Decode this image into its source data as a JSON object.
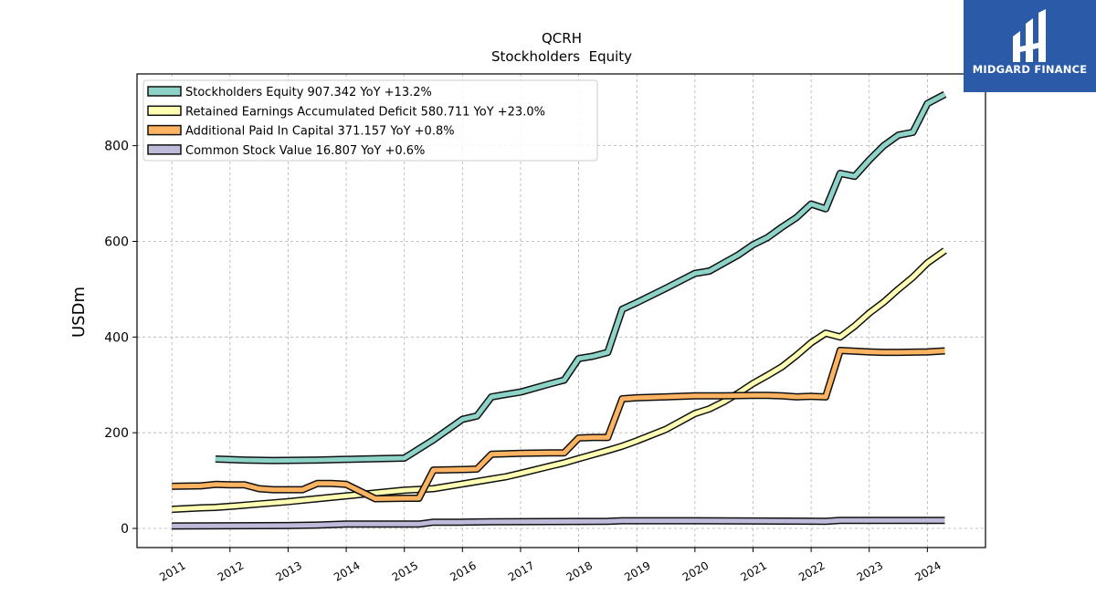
{
  "logo": {
    "text": "MIDGARD FINANCE",
    "background": "#2a5aa8"
  },
  "chart_data": {
    "type": "line",
    "title": "QCRH",
    "subtitle": "Stockholders  Equity",
    "ylabel": "USDm",
    "xlabel": "",
    "xlim": [
      2010.4,
      2025.0
    ],
    "ylim": [
      -40,
      950
    ],
    "yticks": [
      0,
      200,
      400,
      600,
      800
    ],
    "xticks": [
      2011,
      2012,
      2013,
      2014,
      2015,
      2016,
      2017,
      2018,
      2019,
      2020,
      2021,
      2022,
      2023,
      2024
    ],
    "grid": true,
    "legend_position": "top-left",
    "series": [
      {
        "name": "Stockholders Equity",
        "legend_label": "Stockholders Equity  907.342 YoY +13.2%",
        "color": "#8dd3c7",
        "points": [
          [
            2011.75,
            145
          ],
          [
            2012.25,
            143
          ],
          [
            2012.75,
            142
          ],
          [
            2013.5,
            143
          ],
          [
            2014.25,
            145
          ],
          [
            2015.0,
            147
          ],
          [
            2015.5,
            185
          ],
          [
            2016.0,
            228
          ],
          [
            2016.25,
            235
          ],
          [
            2016.5,
            275
          ],
          [
            2016.75,
            280
          ],
          [
            2017.0,
            285
          ],
          [
            2017.5,
            302
          ],
          [
            2017.75,
            310
          ],
          [
            2018.0,
            355
          ],
          [
            2018.25,
            360
          ],
          [
            2018.5,
            368
          ],
          [
            2018.75,
            458
          ],
          [
            2019.0,
            472
          ],
          [
            2019.5,
            502
          ],
          [
            2020.0,
            533
          ],
          [
            2020.25,
            538
          ],
          [
            2020.5,
            555
          ],
          [
            2020.75,
            572
          ],
          [
            2021.0,
            593
          ],
          [
            2021.25,
            608
          ],
          [
            2021.5,
            630
          ],
          [
            2021.75,
            650
          ],
          [
            2022.0,
            678
          ],
          [
            2022.25,
            668
          ],
          [
            2022.5,
            742
          ],
          [
            2022.75,
            736
          ],
          [
            2023.0,
            770
          ],
          [
            2023.25,
            800
          ],
          [
            2023.5,
            822
          ],
          [
            2023.75,
            828
          ],
          [
            2024.0,
            888
          ],
          [
            2024.3,
            907.342
          ]
        ]
      },
      {
        "name": "Retained Earnings Accumulated Deficit",
        "legend_label": "Retained Earnings Accumulated Deficit  580.711 YoY +23.0%",
        "color": "#ffffb3",
        "points": [
          [
            2011.0,
            40
          ],
          [
            2011.5,
            43
          ],
          [
            2011.75,
            44
          ],
          [
            2012.0,
            46
          ],
          [
            2012.5,
            51
          ],
          [
            2013.0,
            56
          ],
          [
            2013.5,
            62
          ],
          [
            2014.0,
            68
          ],
          [
            2014.5,
            74
          ],
          [
            2015.0,
            80
          ],
          [
            2015.5,
            83
          ],
          [
            2016.0,
            93
          ],
          [
            2016.5,
            103
          ],
          [
            2016.75,
            108
          ],
          [
            2017.0,
            115
          ],
          [
            2017.5,
            130
          ],
          [
            2017.75,
            137
          ],
          [
            2018.0,
            146
          ],
          [
            2018.5,
            163
          ],
          [
            2018.75,
            172
          ],
          [
            2019.0,
            183
          ],
          [
            2019.5,
            207
          ],
          [
            2020.0,
            240
          ],
          [
            2020.25,
            250
          ],
          [
            2020.5,
            265
          ],
          [
            2020.75,
            283
          ],
          [
            2021.0,
            303
          ],
          [
            2021.25,
            320
          ],
          [
            2021.5,
            338
          ],
          [
            2021.75,
            362
          ],
          [
            2022.0,
            388
          ],
          [
            2022.25,
            408
          ],
          [
            2022.5,
            400
          ],
          [
            2022.75,
            423
          ],
          [
            2023.0,
            450
          ],
          [
            2023.25,
            473
          ],
          [
            2023.5,
            500
          ],
          [
            2023.75,
            525
          ],
          [
            2024.0,
            555
          ],
          [
            2024.3,
            580.711
          ]
        ]
      },
      {
        "name": "Additional Paid In Capital",
        "legend_label": "Additional Paid In Capital  371.157 YoY +0.8%",
        "color": "#fdb462",
        "points": [
          [
            2011.0,
            88
          ],
          [
            2011.5,
            89
          ],
          [
            2011.75,
            92
          ],
          [
            2012.0,
            91
          ],
          [
            2012.25,
            91
          ],
          [
            2012.5,
            83
          ],
          [
            2012.75,
            81
          ],
          [
            2013.0,
            81
          ],
          [
            2013.25,
            81
          ],
          [
            2013.5,
            94
          ],
          [
            2013.75,
            94
          ],
          [
            2014.0,
            92
          ],
          [
            2014.5,
            62
          ],
          [
            2015.0,
            63
          ],
          [
            2015.25,
            63
          ],
          [
            2015.5,
            122
          ],
          [
            2016.0,
            123
          ],
          [
            2016.25,
            124
          ],
          [
            2016.5,
            155
          ],
          [
            2017.0,
            157
          ],
          [
            2017.5,
            158
          ],
          [
            2017.75,
            158
          ],
          [
            2018.0,
            189
          ],
          [
            2018.25,
            190
          ],
          [
            2018.5,
            190
          ],
          [
            2018.75,
            271
          ],
          [
            2019.0,
            273
          ],
          [
            2019.5,
            275
          ],
          [
            2020.0,
            277
          ],
          [
            2020.5,
            277
          ],
          [
            2021.0,
            278
          ],
          [
            2021.25,
            278
          ],
          [
            2021.5,
            277
          ],
          [
            2021.75,
            275
          ],
          [
            2022.0,
            276
          ],
          [
            2022.25,
            275
          ],
          [
            2022.5,
            372
          ],
          [
            2023.0,
            369
          ],
          [
            2023.25,
            368
          ],
          [
            2023.5,
            368
          ],
          [
            2024.0,
            369
          ],
          [
            2024.3,
            371.157
          ]
        ]
      },
      {
        "name": "Common Stock Value",
        "legend_label": "Common Stock Value  16.807 YoY +0.6%",
        "color": "#bebada",
        "points": [
          [
            2011.0,
            5
          ],
          [
            2013.0,
            6
          ],
          [
            2013.5,
            7
          ],
          [
            2014.0,
            9
          ],
          [
            2015.0,
            9
          ],
          [
            2015.25,
            9
          ],
          [
            2015.5,
            13
          ],
          [
            2016.0,
            13
          ],
          [
            2016.5,
            14
          ],
          [
            2018.5,
            15
          ],
          [
            2018.75,
            16
          ],
          [
            2020.0,
            16
          ],
          [
            2022.25,
            15
          ],
          [
            2022.5,
            16.7
          ],
          [
            2024.3,
            16.807
          ]
        ]
      }
    ]
  }
}
